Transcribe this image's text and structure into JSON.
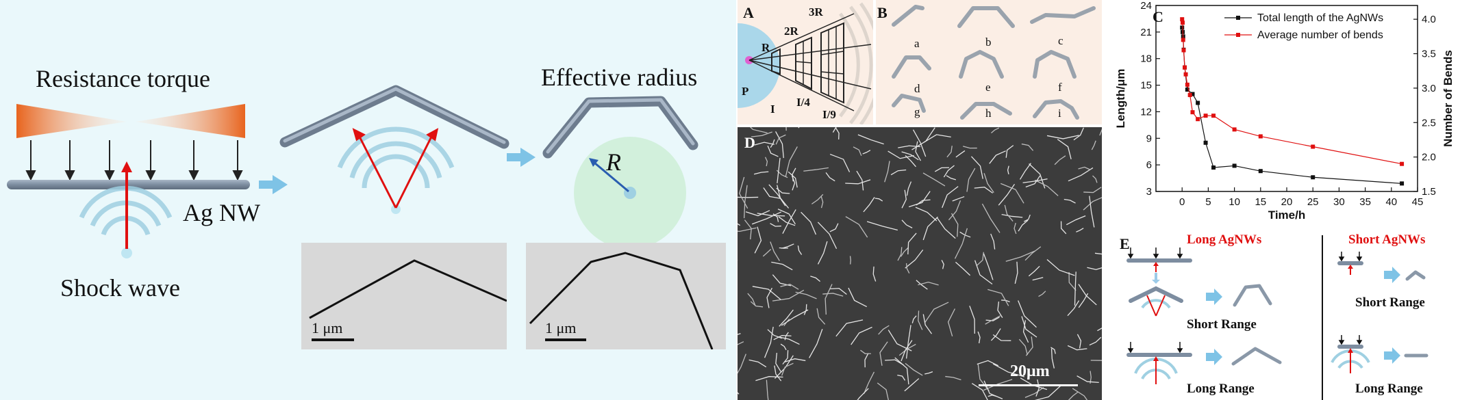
{
  "left": {
    "resistance_torque": "Resistance torque",
    "effective_radius": "Effective radius",
    "ag_nw": "Ag NW",
    "shock_wave": "Shock wave",
    "radius_symbol": "R",
    "scale_bar_1": "1 μm",
    "scale_bar_2": "1 μm"
  },
  "panel_a": {
    "letter": "A",
    "labels": {
      "r": "R",
      "r2": "2R",
      "r3": "3R",
      "p": "P",
      "i": "I",
      "i4": "I/4",
      "i9": "I/9"
    }
  },
  "panel_b": {
    "letter": "B",
    "items": [
      "a",
      "b",
      "c",
      "d",
      "e",
      "f",
      "g",
      "h",
      "i"
    ]
  },
  "panel_c": {
    "letter": "C"
  },
  "panel_d": {
    "letter": "D",
    "scale_bar": "20μm"
  },
  "panel_e": {
    "letter": "E",
    "long_title": "Long AgNWs",
    "short_title": "Short AgNWs",
    "long_short_range": "Short Range",
    "long_long_range": "Long Range",
    "short_short_range": "Short Range",
    "short_long_range": "Long Range"
  },
  "chart_data": {
    "type": "line",
    "xlabel": "Time/h",
    "ylabel": "Length/μm",
    "y2label": "Number of Bends",
    "xlim": [
      -5,
      45
    ],
    "xticks": [
      0,
      5,
      10,
      15,
      20,
      25,
      30,
      35,
      40,
      45
    ],
    "ylim": [
      3,
      24
    ],
    "yticks": [
      3,
      6,
      9,
      12,
      15,
      18,
      21,
      24
    ],
    "y2lim": [
      1.5,
      4.2
    ],
    "y2ticks": [
      1.5,
      2.0,
      2.5,
      3.0,
      3.5,
      4.0
    ],
    "legend_position": "top-right",
    "series": [
      {
        "name": "Total length of the AgNWs",
        "axis": "left",
        "color": "#111111",
        "x": [
          0,
          0.1,
          0.2,
          0.3,
          0.5,
          1,
          2,
          3,
          4.5,
          6,
          10,
          15,
          25,
          42
        ],
        "y": [
          21.5,
          21.0,
          20.5,
          19.0,
          17.0,
          14.5,
          14.0,
          13.0,
          8.5,
          5.7,
          5.9,
          5.3,
          4.6,
          3.9
        ]
      },
      {
        "name": "Average number of bends",
        "axis": "right",
        "color": "#e01010",
        "x": [
          0,
          0.1,
          0.2,
          0.3,
          0.5,
          0.7,
          1,
          1.5,
          2,
          3,
          4.5,
          6,
          10,
          15,
          25,
          42
        ],
        "y": [
          4.0,
          3.95,
          3.7,
          3.55,
          3.3,
          3.2,
          3.05,
          2.9,
          2.65,
          2.55,
          2.6,
          2.6,
          2.4,
          2.3,
          2.15,
          1.9
        ]
      }
    ]
  }
}
